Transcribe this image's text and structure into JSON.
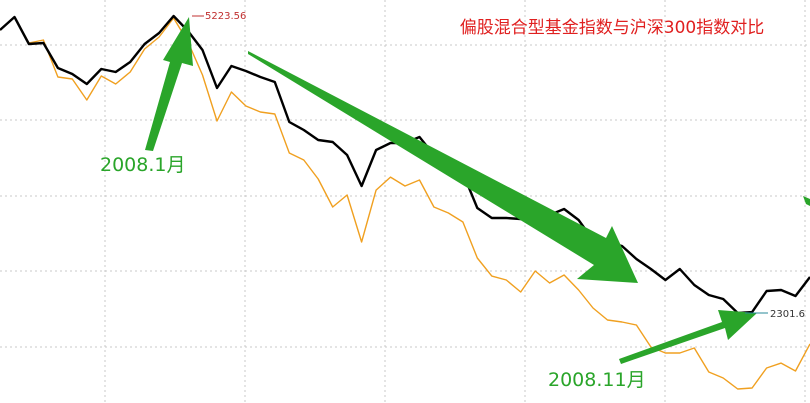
{
  "chart_data": {
    "type": "line",
    "title": "偏股混合型基金指数与沪深300指数对比",
    "annotations": [
      "5223.56",
      "2301.6",
      "2008.1月",
      "2008.11月"
    ],
    "categories": [
      null,
      null,
      null,
      null,
      null,
      null,
      null,
      null,
      null,
      null,
      null,
      null,
      null,
      null,
      null,
      null,
      null,
      null,
      null,
      null,
      null,
      null,
      null,
      null,
      null,
      null,
      null,
      null,
      null,
      null,
      null,
      null,
      null,
      null,
      null,
      null,
      null,
      null,
      null,
      null,
      null,
      null,
      null,
      null,
      null,
      null,
      null,
      null,
      null,
      null,
      null,
      null,
      null,
      null,
      null,
      null,
      null
    ],
    "ylim": [
      1416,
      5381
    ],
    "series": [
      {
        "color": "#000000",
        "values": [
          5086,
          5214,
          4948,
          4958,
          4712,
          4653,
          4555,
          4702,
          4673,
          4771,
          4948,
          5056,
          5223.56,
          5076,
          4889,
          4515,
          4732,
          4682,
          4623,
          4574,
          4181,
          4102,
          4004,
          3984,
          3856,
          3551,
          3905,
          3974,
          3974,
          4033,
          3856,
          3797,
          3679,
          3335,
          3236,
          3236,
          3226,
          3325,
          3266,
          3325,
          3216,
          3020,
          3000,
          2961,
          2833,
          2734,
          2626,
          2734,
          2577,
          2479,
          2439,
          2301.6,
          2310,
          2518,
          2528,
          2469,
          2656
        ]
      },
      {
        "color": "#f0a020",
        "values": [
          5086,
          5214,
          4958,
          4987,
          4623,
          4604,
          4397,
          4633,
          4555,
          4673,
          4899,
          5017,
          5204,
          4968,
          4643,
          4191,
          4476,
          4338,
          4279,
          4259,
          3876,
          3807,
          3620,
          3344,
          3462,
          3000,
          3511,
          3639,
          3551,
          3610,
          3344,
          3285,
          3197,
          2843,
          2665,
          2626,
          2508,
          2715,
          2597,
          2675,
          2528,
          2351,
          2233,
          2213,
          2183,
          1967,
          1908,
          1908,
          1957,
          1721,
          1662,
          1554,
          1564,
          1760,
          1809,
          1731,
          1997
        ]
      }
    ]
  }
}
